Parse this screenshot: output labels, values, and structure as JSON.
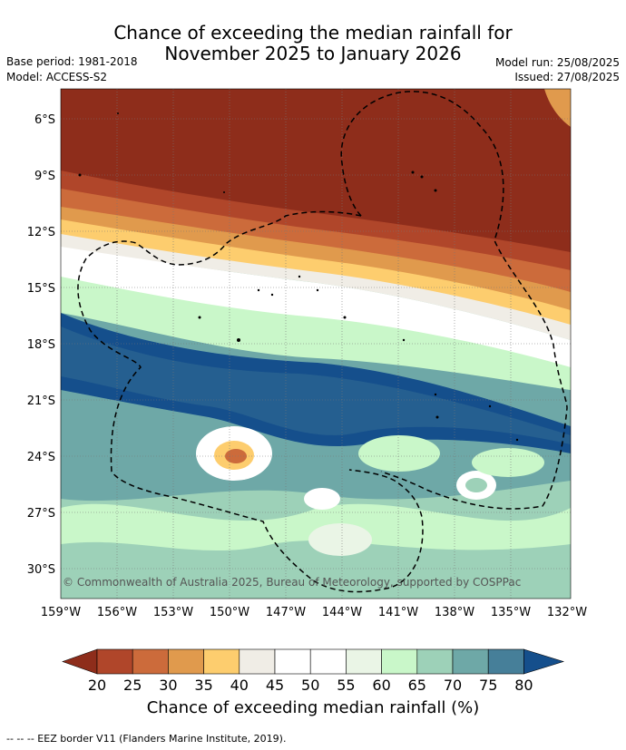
{
  "title": {
    "line1": "Chance of exceeding the median rainfall for",
    "line2": "November 2025 to January 2026"
  },
  "meta": {
    "base_period": "Base period: 1981-2018",
    "model": "Model: ACCESS-S2",
    "model_run": "Model run: 25/08/2025",
    "issued": "Issued: 27/08/2025"
  },
  "map": {
    "lat_labels": [
      "6°S",
      "9°S",
      "12°S",
      "15°S",
      "18°S",
      "21°S",
      "24°S",
      "27°S",
      "30°S"
    ],
    "lon_labels": [
      "159°W",
      "156°W",
      "153°W",
      "150°W",
      "147°W",
      "144°W",
      "141°W",
      "138°W",
      "135°W",
      "132°W"
    ],
    "copyright": "© Commonwealth of Australia 2025, Bureau of Meteorology, supported by COSPPac"
  },
  "colorbar": {
    "ticks": [
      "20",
      "25",
      "30",
      "35",
      "40",
      "45",
      "50",
      "55",
      "60",
      "65",
      "70",
      "75",
      "80"
    ],
    "colors": [
      "#8e2d1b",
      "#b0462a",
      "#cc6b3b",
      "#e09a4d",
      "#fdcd6e",
      "#f0ede6",
      "#ffffff",
      "#ffffff",
      "#eaf5e6",
      "#c9f7c9",
      "#9dd1b8",
      "#6ea8a7",
      "#467f99",
      "#154f8c"
    ],
    "title": "Chance of exceeding median rainfall (%)"
  },
  "footer": "--  --  -- EEZ border V11 (Flanders Marine Institute, 2019)."
}
